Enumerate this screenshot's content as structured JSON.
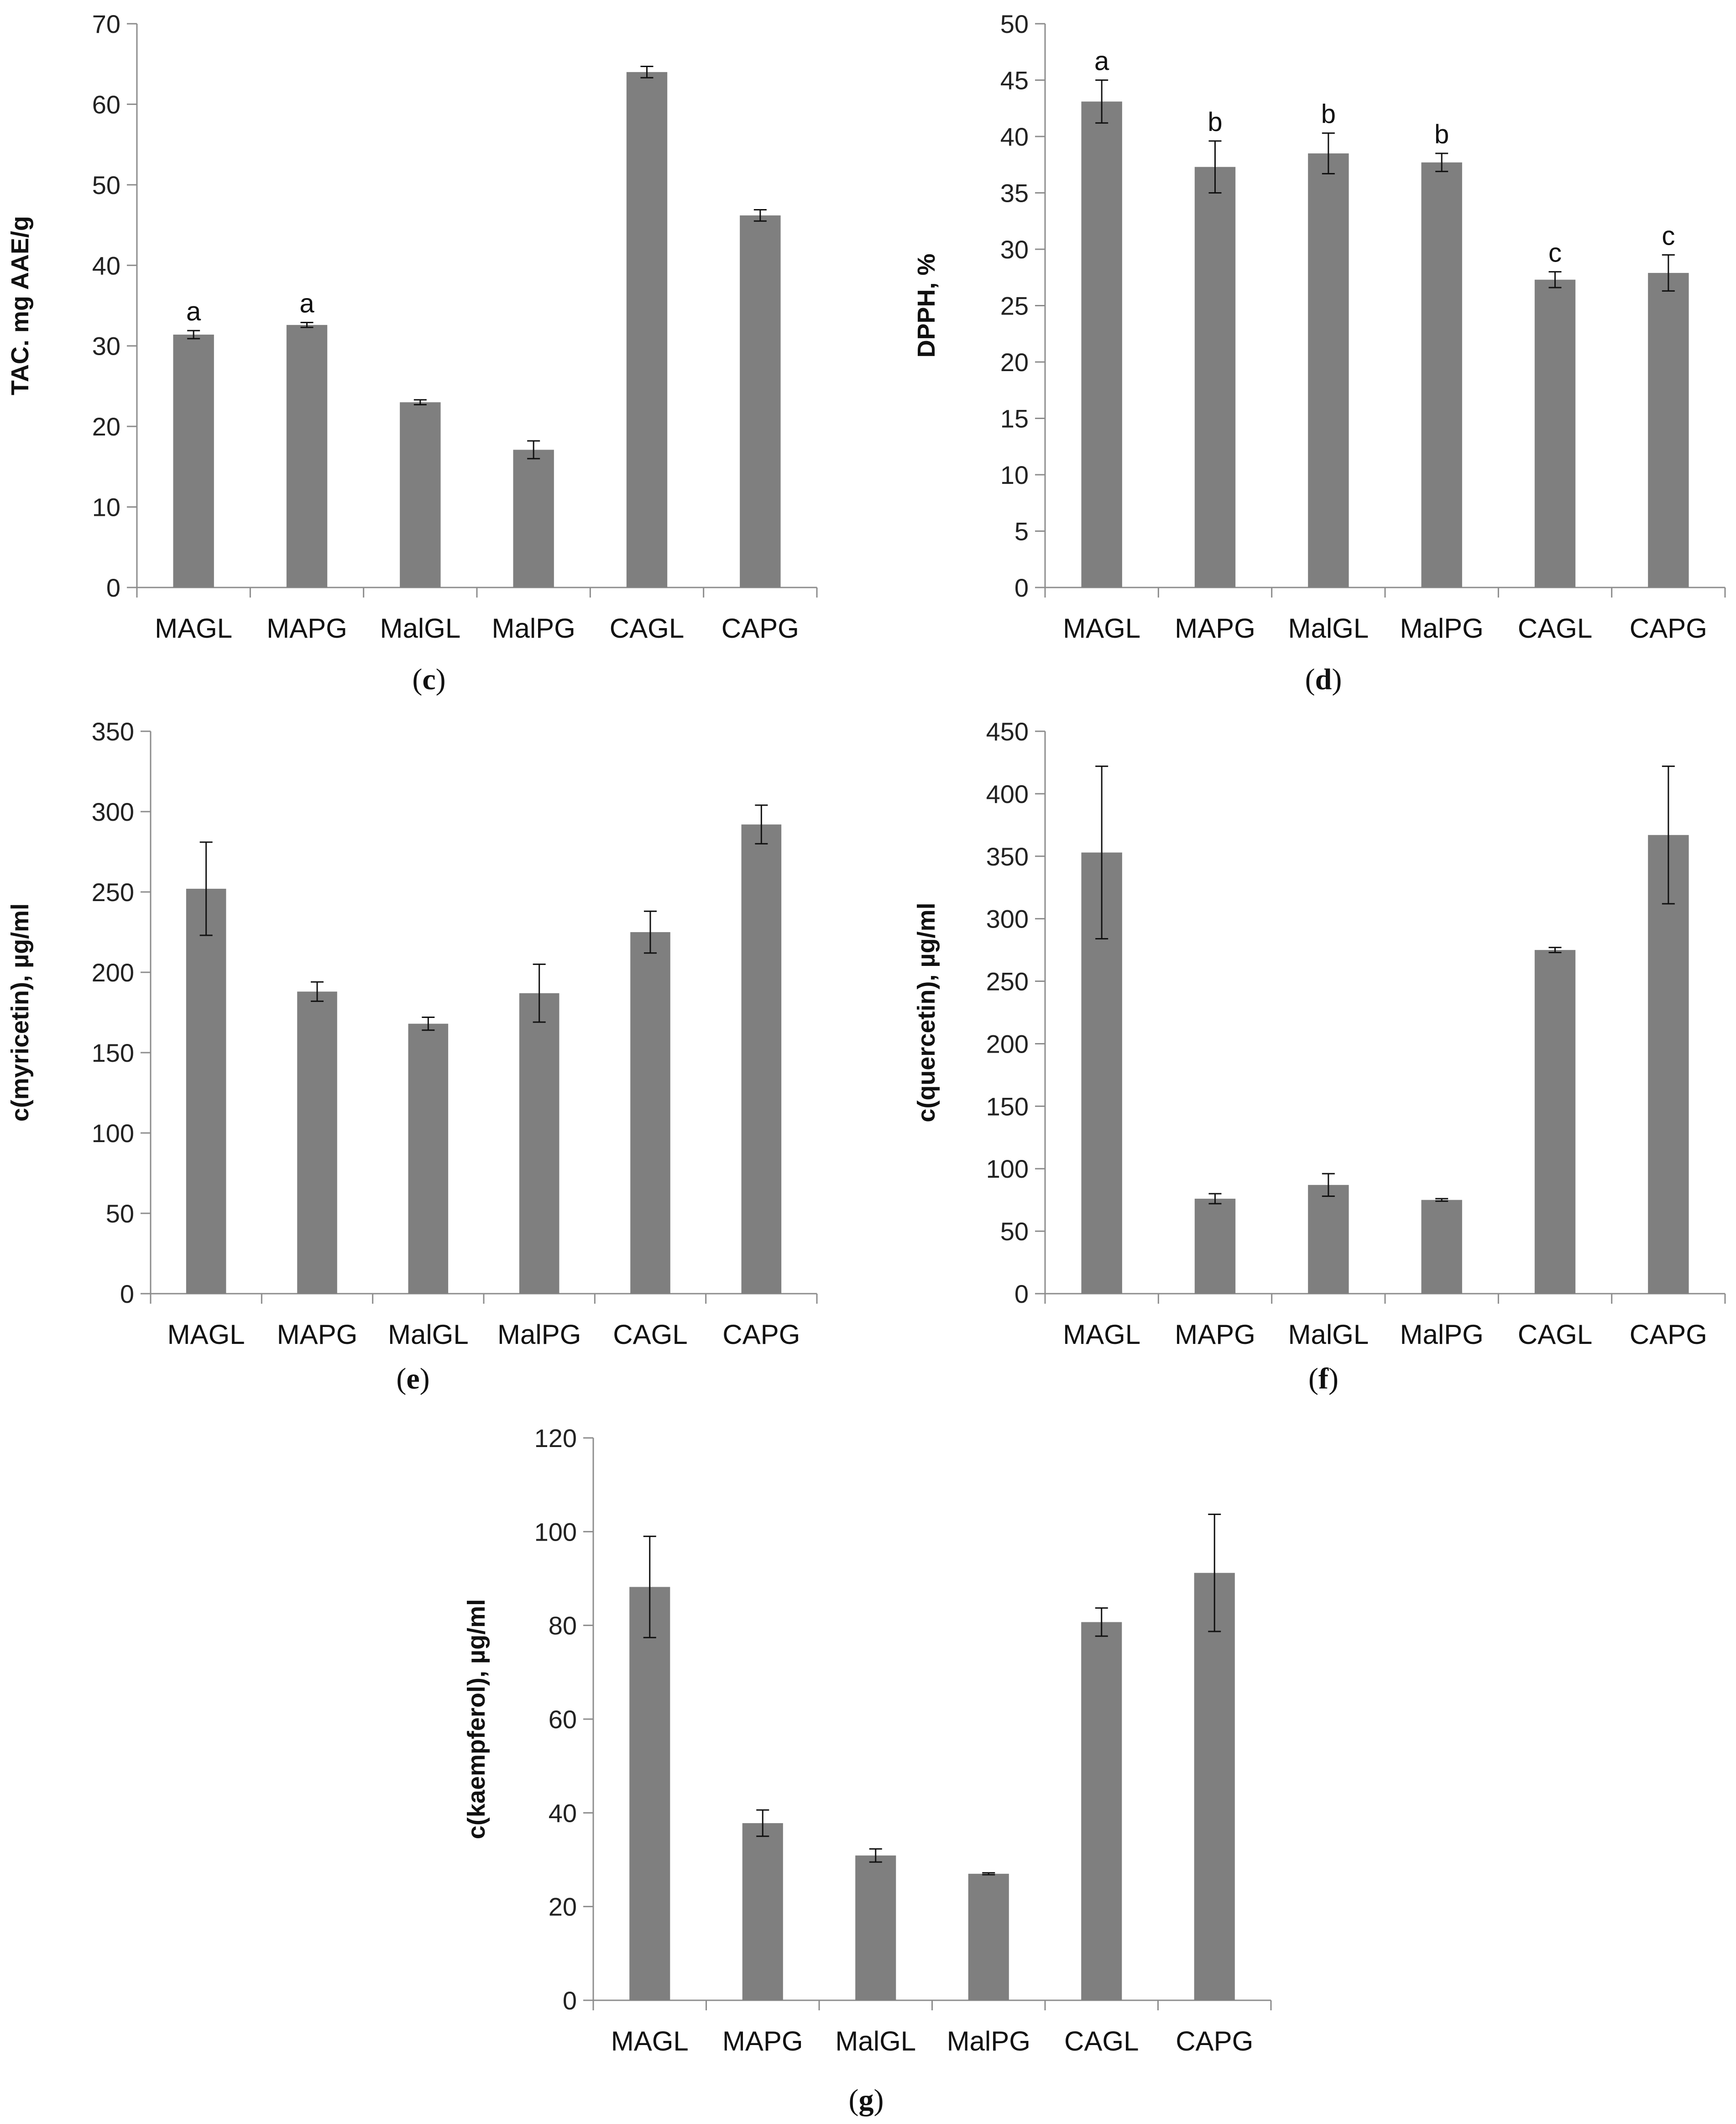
{
  "chart_data": [
    {
      "id": "c",
      "type": "bar",
      "panel_label": "c",
      "ylabel": "TAC. mg AAE/g",
      "categories": [
        "MAGL",
        "MAPG",
        "MalGL",
        "MalPG",
        "CAGL",
        "CAPG"
      ],
      "values": [
        31.4,
        32.6,
        23.0,
        17.1,
        64.0,
        46.2
      ],
      "errors": [
        0.5,
        0.3,
        0.3,
        1.1,
        0.7,
        0.7
      ],
      "sig_letters": [
        "a",
        "a",
        "",
        "",
        "",
        ""
      ],
      "ylim": [
        0,
        70
      ],
      "yticks": [
        0,
        10,
        20,
        30,
        40,
        50,
        60,
        70
      ]
    },
    {
      "id": "d",
      "type": "bar",
      "panel_label": "d",
      "ylabel": "DPPH, %",
      "categories": [
        "MAGL",
        "MAPG",
        "MalGL",
        "MalPG",
        "CAGL",
        "CAPG"
      ],
      "values": [
        43.1,
        37.3,
        38.5,
        37.7,
        27.3,
        27.9
      ],
      "errors": [
        1.9,
        2.3,
        1.8,
        0.8,
        0.7,
        1.6
      ],
      "sig_letters": [
        "a",
        "b",
        "b",
        "b",
        "c",
        "c"
      ],
      "ylim": [
        0,
        50
      ],
      "yticks": [
        0,
        5,
        10,
        15,
        20,
        25,
        30,
        35,
        40,
        45,
        50
      ]
    },
    {
      "id": "e",
      "type": "bar",
      "panel_label": "e",
      "ylabel": "c(myricetin), µg/ml",
      "categories": [
        "MAGL",
        "MAPG",
        "MalGL",
        "MalPG",
        "CAGL",
        "CAPG"
      ],
      "values": [
        252,
        188,
        168,
        187,
        225,
        292
      ],
      "errors": [
        29,
        6,
        4,
        18,
        13,
        12
      ],
      "sig_letters": [
        "",
        "",
        "",
        "",
        "",
        ""
      ],
      "ylim": [
        0,
        350
      ],
      "yticks": [
        0,
        50,
        100,
        150,
        200,
        250,
        300,
        350
      ]
    },
    {
      "id": "f",
      "type": "bar",
      "panel_label": "f",
      "ylabel": "c(quercetin), µg/ml",
      "categories": [
        "MAGL",
        "MAPG",
        "MalGL",
        "MalPG",
        "CAGL",
        "CAPG"
      ],
      "values": [
        353,
        76,
        87,
        75,
        275,
        367
      ],
      "errors": [
        69,
        4,
        9,
        1,
        2,
        55
      ],
      "sig_letters": [
        "",
        "",
        "",
        "",
        "",
        ""
      ],
      "ylim": [
        0,
        450
      ],
      "yticks": [
        0,
        50,
        100,
        150,
        200,
        250,
        300,
        350,
        400,
        450
      ]
    },
    {
      "id": "g",
      "type": "bar",
      "panel_label": "g",
      "ylabel": "c(kaempferol), µg/ml",
      "categories": [
        "MAGL",
        "MAPG",
        "MalGL",
        "MalPG",
        "CAGL",
        "CAPG"
      ],
      "values": [
        88.2,
        37.8,
        30.9,
        27.0,
        80.7,
        91.2
      ],
      "errors": [
        10.8,
        2.8,
        1.4,
        0.2,
        3.0,
        12.5
      ],
      "sig_letters": [
        "",
        "",
        "",
        "",
        "",
        ""
      ],
      "ylim": [
        0,
        120
      ],
      "yticks": [
        0,
        20,
        40,
        60,
        80,
        100,
        120
      ]
    }
  ],
  "colors": {
    "bar": "#7f7f7f",
    "axis": "#8c8c8c",
    "error_bar": "#111111",
    "text": "#111111"
  }
}
